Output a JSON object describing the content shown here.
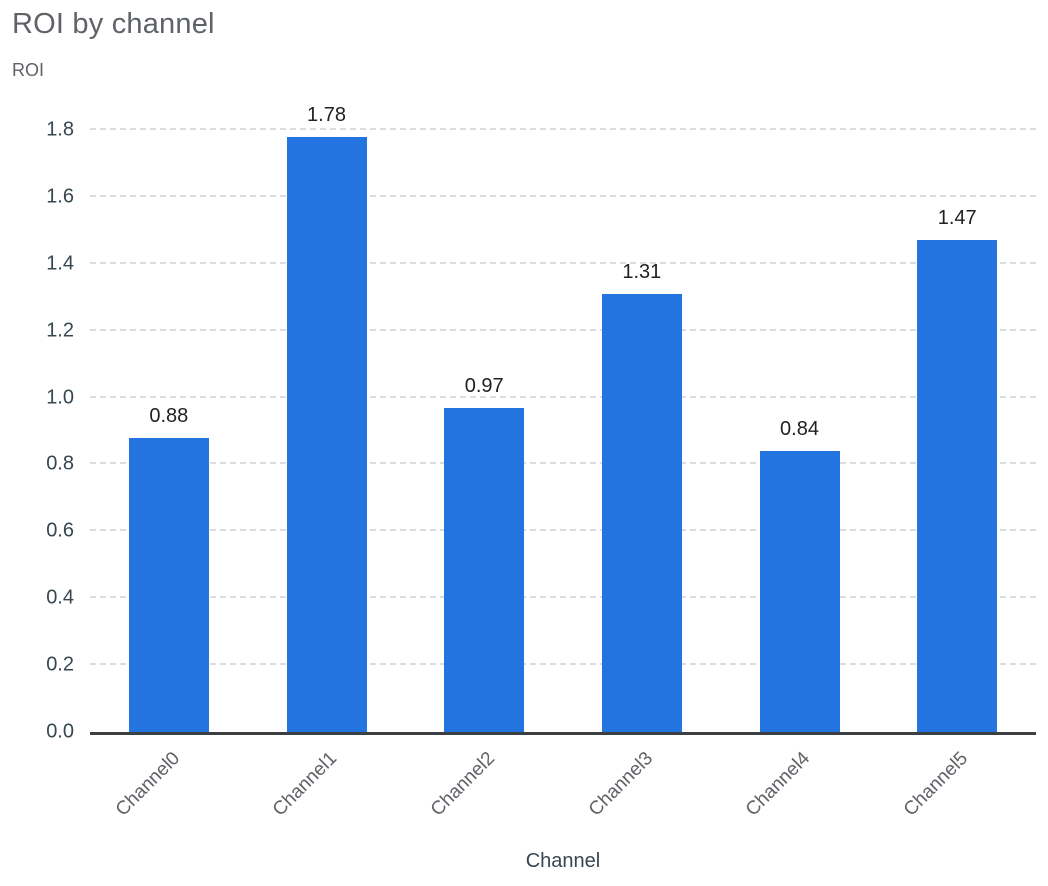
{
  "title": "ROI by channel",
  "chart_data": {
    "type": "bar",
    "title": "ROI by channel",
    "xlabel": "Channel",
    "ylabel": "ROI",
    "categories": [
      "Channel0",
      "Channel1",
      "Channel2",
      "Channel3",
      "Channel4",
      "Channel5"
    ],
    "values": [
      0.88,
      1.78,
      0.97,
      1.31,
      0.84,
      1.47
    ],
    "value_labels": [
      "0.88",
      "1.78",
      "0.97",
      "1.31",
      "0.84",
      "1.47"
    ],
    "ylim": [
      0,
      1.8
    ],
    "yticks": [
      "0.0",
      "0.2",
      "0.4",
      "0.6",
      "0.8",
      "1.0",
      "1.2",
      "1.4",
      "1.6",
      "1.8"
    ],
    "grid": true,
    "legend": "none",
    "bar_color": "#2374e1",
    "grid_color": "#dadce0",
    "axis_color": "#3c4043",
    "title_color": "#5f6368",
    "tick_color": "#37474f"
  }
}
